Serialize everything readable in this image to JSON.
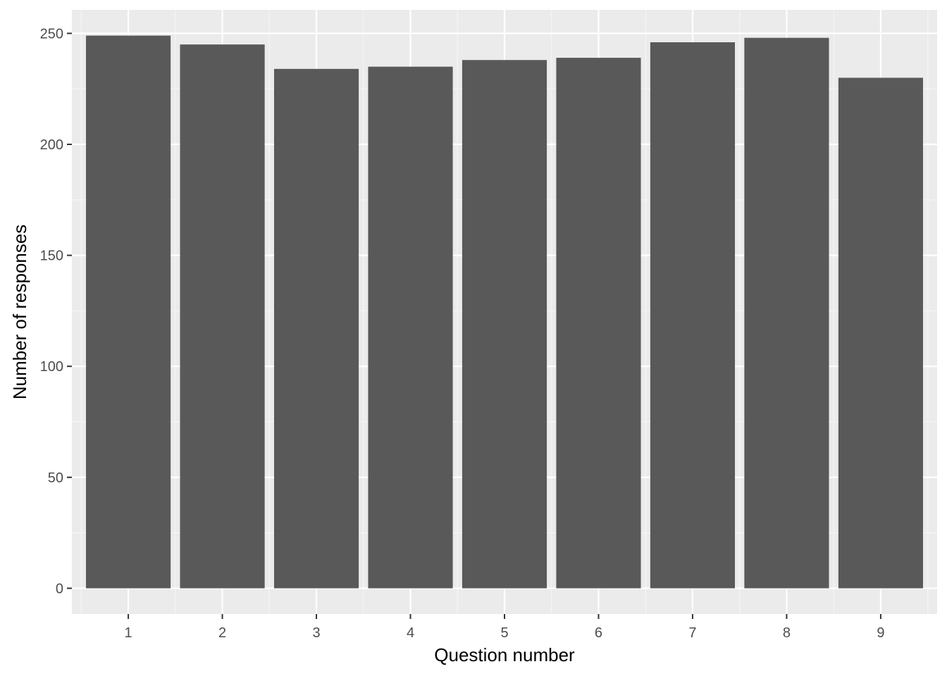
{
  "chart_data": {
    "type": "bar",
    "categories": [
      "1",
      "2",
      "3",
      "4",
      "5",
      "6",
      "7",
      "8",
      "9"
    ],
    "values": [
      249,
      245,
      234,
      235,
      238,
      239,
      246,
      248,
      230
    ],
    "xlabel": "Question number",
    "ylabel": "Number of responses",
    "ylim": [
      -11.6,
      260.6
    ],
    "yticks": [
      0,
      50,
      100,
      150,
      200,
      250
    ],
    "ytick_labels": [
      "0",
      "50",
      "100",
      "150",
      "200",
      "250"
    ],
    "grid": true,
    "legend": "none"
  },
  "colors": {
    "bar": "#595959",
    "panel_background": "#ebebeb",
    "grid_major": "#ffffff",
    "grid_minor": "#f5f5f5",
    "tick_mark": "#333333"
  }
}
